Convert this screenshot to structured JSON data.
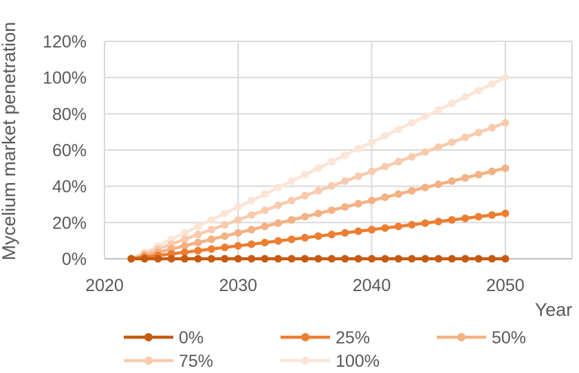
{
  "chart_data": {
    "type": "line",
    "title": "",
    "xlabel": "Year",
    "ylabel": "Mycelium market penetration",
    "xlim": [
      2020,
      2055
    ],
    "ylim": [
      0,
      1.2
    ],
    "x_ticks": [
      2020,
      2030,
      2040,
      2050
    ],
    "y_ticks": [
      0,
      0.2,
      0.4,
      0.6,
      0.8,
      1.0,
      1.2
    ],
    "y_tick_labels": [
      "0%",
      "20%",
      "40%",
      "60%",
      "80%",
      "100%",
      "120%"
    ],
    "grid": true,
    "legend_position": "bottom",
    "x": [
      2022,
      2023,
      2024,
      2025,
      2026,
      2027,
      2028,
      2029,
      2030,
      2031,
      2032,
      2033,
      2034,
      2035,
      2036,
      2037,
      2038,
      2039,
      2040,
      2041,
      2042,
      2043,
      2044,
      2045,
      2046,
      2047,
      2048,
      2049,
      2050
    ],
    "series": [
      {
        "name": "0%",
        "color": "#c55a11",
        "values": [
          0,
          0,
          0,
          0,
          0,
          0,
          0,
          0,
          0,
          0,
          0,
          0,
          0,
          0,
          0,
          0,
          0,
          0,
          0,
          0,
          0,
          0,
          0,
          0,
          0,
          0,
          0,
          0,
          0
        ]
      },
      {
        "name": "25%",
        "color": "#ed7d31",
        "values": [
          0,
          0.0089,
          0.0179,
          0.0268,
          0.0357,
          0.0446,
          0.0536,
          0.0625,
          0.0714,
          0.0804,
          0.0893,
          0.0982,
          0.1071,
          0.1161,
          0.125,
          0.1339,
          0.1429,
          0.1518,
          0.1607,
          0.1696,
          0.1786,
          0.1875,
          0.1964,
          0.2054,
          0.2143,
          0.2232,
          0.2321,
          0.2411,
          0.25
        ]
      },
      {
        "name": "50%",
        "color": "#f4b183",
        "values": [
          0,
          0.0179,
          0.0357,
          0.0536,
          0.0714,
          0.0893,
          0.1071,
          0.125,
          0.1429,
          0.1607,
          0.1786,
          0.1964,
          0.2143,
          0.2321,
          0.25,
          0.2679,
          0.2857,
          0.3036,
          0.3214,
          0.3393,
          0.3571,
          0.375,
          0.3929,
          0.4107,
          0.4286,
          0.4464,
          0.4643,
          0.4821,
          0.5
        ]
      },
      {
        "name": "75%",
        "color": "#f8cbad",
        "values": [
          0,
          0.0268,
          0.0536,
          0.0804,
          0.1071,
          0.1339,
          0.1607,
          0.1875,
          0.2143,
          0.2411,
          0.2679,
          0.2946,
          0.3214,
          0.3482,
          0.375,
          0.4018,
          0.4286,
          0.4554,
          0.4821,
          0.5089,
          0.5357,
          0.5625,
          0.5893,
          0.6161,
          0.6429,
          0.6696,
          0.6964,
          0.7232,
          0.75
        ]
      },
      {
        "name": "100%",
        "color": "#fbe5d6",
        "values": [
          0,
          0.0357,
          0.0714,
          0.1071,
          0.1429,
          0.1786,
          0.2143,
          0.25,
          0.2857,
          0.3214,
          0.3571,
          0.3929,
          0.4286,
          0.4643,
          0.5,
          0.5357,
          0.5714,
          0.6071,
          0.6429,
          0.6786,
          0.7143,
          0.75,
          0.7857,
          0.8214,
          0.8571,
          0.8929,
          0.9286,
          0.9643,
          1.0
        ]
      }
    ]
  }
}
